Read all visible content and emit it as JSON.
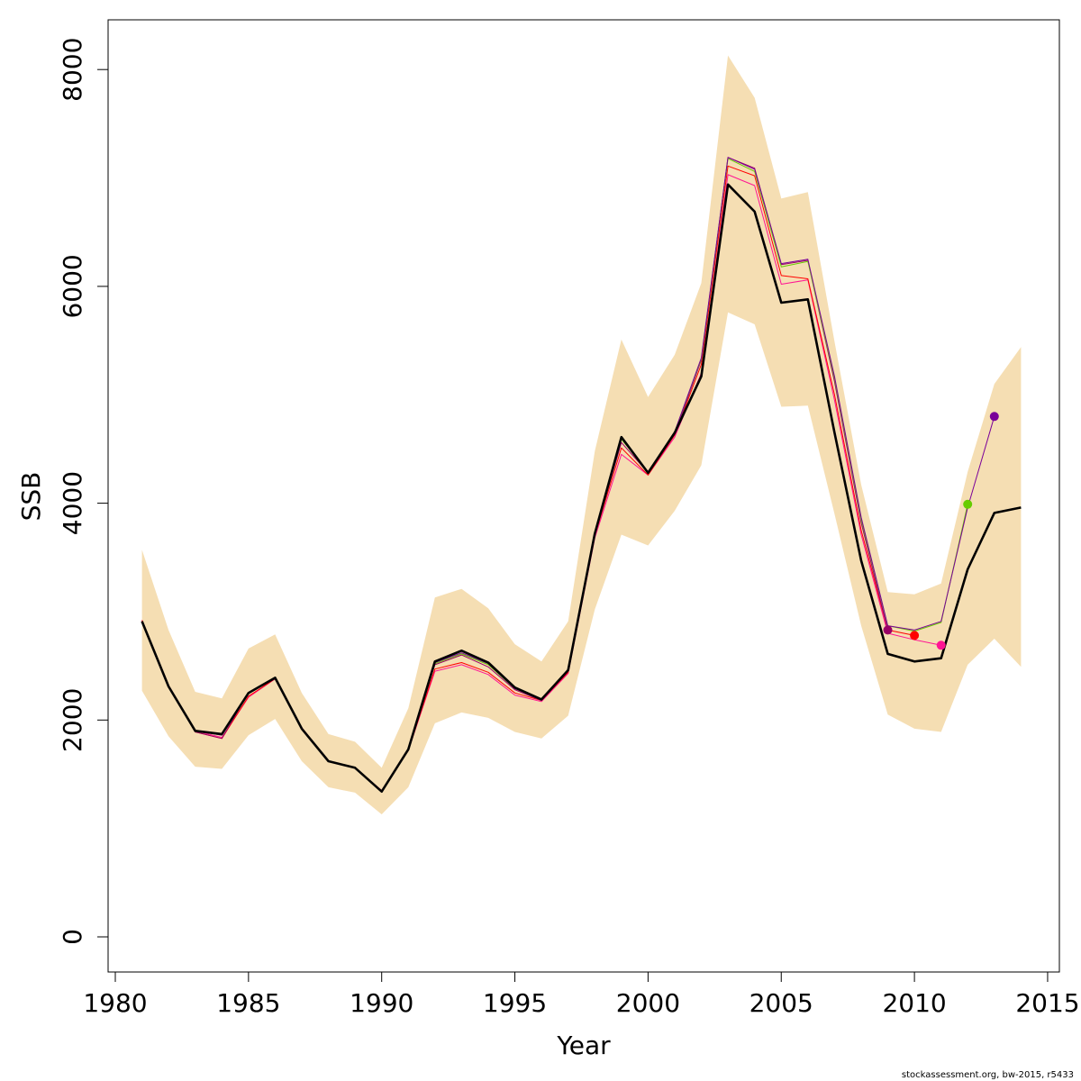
{
  "chart_data": {
    "type": "line",
    "title": "",
    "xlabel": "Year",
    "ylabel": "SSB",
    "xlim": [
      1980,
      2015
    ],
    "ylim": [
      0,
      8000
    ],
    "x_ticks": [
      "1980",
      "1985",
      "1990",
      "1995",
      "2000",
      "2005",
      "2010",
      "2015"
    ],
    "y_ticks": [
      "0",
      "2000",
      "4000",
      "6000",
      "8000"
    ],
    "footnote": "stockassessment.org, bw-2015, r5433",
    "band_color": "#F5DEB3",
    "confidence_band": {
      "x": [
        1981,
        1982,
        1983,
        1984,
        1985,
        1986,
        1987,
        1988,
        1989,
        1990,
        1991,
        1992,
        1993,
        1994,
        1995,
        1996,
        1997,
        1998,
        1999,
        2000,
        2001,
        2002,
        2003,
        2004,
        2005,
        2006,
        2007,
        2008,
        2009,
        2010,
        2011,
        2012,
        2013,
        2014
      ],
      "lower": [
        2270,
        1850,
        1570,
        1550,
        1860,
        2010,
        1620,
        1380,
        1330,
        1130,
        1380,
        1970,
        2070,
        2020,
        1890,
        1830,
        2040,
        3020,
        3710,
        3610,
        3930,
        4350,
        5760,
        5650,
        4890,
        4900,
        3900,
        2870,
        2050,
        1920,
        1890,
        2510,
        2750,
        2490
      ],
      "upper": [
        3570,
        2830,
        2260,
        2200,
        2660,
        2790,
        2250,
        1870,
        1800,
        1560,
        2110,
        3130,
        3210,
        3030,
        2700,
        2540,
        2910,
        4480,
        5510,
        4980,
        5370,
        6030,
        8130,
        7740,
        6810,
        6870,
        5490,
        4170,
        3180,
        3160,
        3260,
        4290,
        5100,
        5440
      ]
    },
    "series": [
      {
        "color": "#000000",
        "x": [
          1981,
          1982,
          1983,
          1984,
          1985,
          1986,
          1987,
          1988,
          1989,
          1990,
          1991,
          1992,
          1993,
          1994,
          1995,
          1996,
          1997,
          1998,
          1999,
          2000,
          2001,
          2002,
          2003,
          2004,
          2005,
          2006,
          2007,
          2008,
          2009,
          2010,
          2011,
          2012,
          2013,
          2014
        ],
        "y": [
          2910,
          2310,
          1900,
          1870,
          2250,
          2390,
          1920,
          1620,
          1560,
          1340,
          1730,
          2540,
          2640,
          2530,
          2300,
          2190,
          2460,
          3720,
          4610,
          4280,
          4650,
          5170,
          6940,
          6690,
          5850,
          5880,
          4650,
          3470,
          2610,
          2540,
          2570,
          3390,
          3910,
          3960
        ]
      },
      {
        "color": "#FF1493",
        "x": [
          1981,
          1982,
          1983,
          1984,
          1985,
          1986,
          1987,
          1988,
          1989,
          1990,
          1991,
          1992,
          1993,
          1994,
          1995,
          1996,
          1997,
          1998,
          1999,
          2000,
          2001,
          2002,
          2003,
          2004,
          2005,
          2006,
          2007,
          2008,
          2009,
          2010,
          2011
        ],
        "y": [
          2920,
          2320,
          1900,
          1840,
          2210,
          2380,
          1930,
          1620,
          1560,
          1350,
          1720,
          2450,
          2510,
          2420,
          2230,
          2170,
          2430,
          3680,
          4450,
          4260,
          4610,
          5200,
          7030,
          6930,
          6020,
          6060,
          4950,
          3710,
          2800,
          2740,
          2690
        ]
      },
      {
        "color": "#FF0000",
        "x": [
          1981,
          1982,
          1983,
          1984,
          1985,
          1986,
          1987,
          1988,
          1989,
          1990,
          1991,
          1992,
          1993,
          1994,
          1995,
          1996,
          1997,
          1998,
          1999,
          2000,
          2001,
          2002,
          2003,
          2004,
          2005,
          2006,
          2007,
          2008,
          2009,
          2010
        ],
        "y": [
          2920,
          2320,
          1890,
          1830,
          2220,
          2380,
          1920,
          1620,
          1560,
          1340,
          1720,
          2470,
          2530,
          2440,
          2250,
          2180,
          2440,
          3700,
          4510,
          4260,
          4630,
          5280,
          7110,
          7020,
          6100,
          6070,
          5000,
          3750,
          2830,
          2780
        ]
      },
      {
        "color": "#990066",
        "x": [
          1981,
          1982,
          1983,
          1984,
          1985,
          1986,
          1987,
          1988,
          1989,
          1990,
          1991,
          1992,
          1993,
          1994,
          1995,
          1996,
          1997,
          1998,
          1999,
          2000,
          2001,
          2002,
          2003,
          2004,
          2005,
          2006,
          2007,
          2008,
          2009
        ],
        "y": [
          2910,
          2310,
          1890,
          1830,
          2250,
          2380,
          1920,
          1620,
          1560,
          1340,
          1720,
          2510,
          2600,
          2490,
          2280,
          2180,
          2450,
          3710,
          4560,
          4280,
          4640,
          5320,
          7190,
          7090,
          6200,
          6240,
          5120,
          3820,
          2830
        ]
      },
      {
        "color": "#66CC00",
        "x": [
          1981,
          1982,
          1983,
          1984,
          1985,
          1986,
          1987,
          1988,
          1989,
          1990,
          1991,
          1992,
          1993,
          1994,
          1995,
          1996,
          1997,
          1998,
          1999,
          2000,
          2001,
          2002,
          2003,
          2004,
          2005,
          2006,
          2007,
          2008,
          2009,
          2010,
          2011,
          2012
        ],
        "y": [
          2910,
          2310,
          1900,
          1860,
          2250,
          2390,
          1920,
          1620,
          1560,
          1340,
          1730,
          2520,
          2610,
          2510,
          2290,
          2190,
          2460,
          3730,
          4590,
          4290,
          4660,
          5330,
          7180,
          7060,
          6180,
          6230,
          5150,
          3850,
          2870,
          2820,
          2900,
          3990
        ]
      },
      {
        "color": "#7A0099",
        "x": [
          1981,
          1982,
          1983,
          1984,
          1985,
          1986,
          1987,
          1988,
          1989,
          1990,
          1991,
          1992,
          1993,
          1994,
          1995,
          1996,
          1997,
          1998,
          1999,
          2000,
          2001,
          2002,
          2003,
          2004,
          2005,
          2006,
          2007,
          2008,
          2009,
          2010,
          2011,
          2012,
          2013
        ],
        "y": [
          2910,
          2310,
          1900,
          1860,
          2250,
          2390,
          1920,
          1620,
          1560,
          1340,
          1730,
          2530,
          2620,
          2520,
          2290,
          2190,
          2460,
          3730,
          4600,
          4290,
          4660,
          5340,
          7190,
          7080,
          6210,
          6250,
          5170,
          3870,
          2870,
          2830,
          2910,
          3960,
          4800
        ]
      }
    ],
    "endpoints": [
      {
        "x": 2009,
        "y": 2830,
        "color": "#990066"
      },
      {
        "x": 2010,
        "y": 2780,
        "color": "#FF0000"
      },
      {
        "x": 2011,
        "y": 2690,
        "color": "#FF1493"
      },
      {
        "x": 2012,
        "y": 3990,
        "color": "#66CC00"
      },
      {
        "x": 2013,
        "y": 4800,
        "color": "#7A0099"
      }
    ]
  }
}
